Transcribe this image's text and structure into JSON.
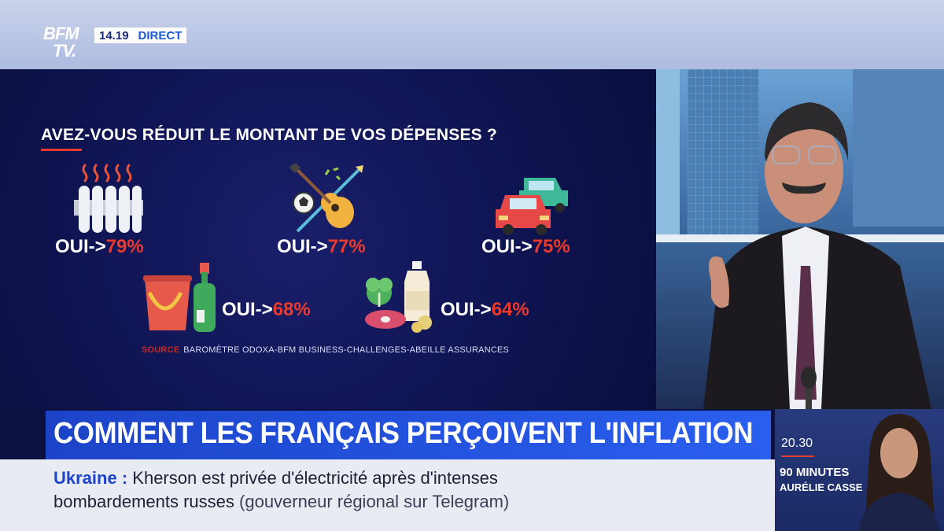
{
  "header": {
    "logo_top": "BFM",
    "logo_bottom": "TV.",
    "time": "14.19",
    "live_label": "DIRECT"
  },
  "infographic": {
    "question": "AVEZ-VOUS RÉDUIT LE MONTANT DE VOS DÉPENSES ?",
    "items": [
      {
        "icon": "radiator-icon",
        "prefix": "OUI->",
        "value": "79%"
      },
      {
        "icon": "leisure-icon",
        "prefix": "OUI->",
        "value": "77%"
      },
      {
        "icon": "cars-icon",
        "prefix": "OUI->",
        "value": "75%"
      },
      {
        "icon": "cleaning-products-icon",
        "prefix": "OUI->",
        "value": "68%"
      },
      {
        "icon": "food-icon",
        "prefix": "OUI->",
        "value": "64%"
      }
    ],
    "source_label": "SOURCE",
    "source_text": "BAROMÈTRE ODOXA-BFM BUSINESS-CHALLENGES-ABEILLE ASSURANCES"
  },
  "headline": "COMMENT LES FRANÇAIS PERÇOIVENT L'INFLATION",
  "ticker": {
    "keyword": "Ukraine",
    "colon": " : ",
    "line1_text": "Kherson est privée d'électricité après d'intenses",
    "line2_text": "bombardements russes",
    "source": "(gouverneur régional sur Telegram)"
  },
  "next_program": {
    "time": "20.30",
    "title": "90 MINUTES",
    "host": "AURÉLIE CASSE"
  },
  "colors": {
    "accent_red": "#ea3a2c",
    "brand_blue": "#2454e0",
    "background": "#0b1140"
  }
}
